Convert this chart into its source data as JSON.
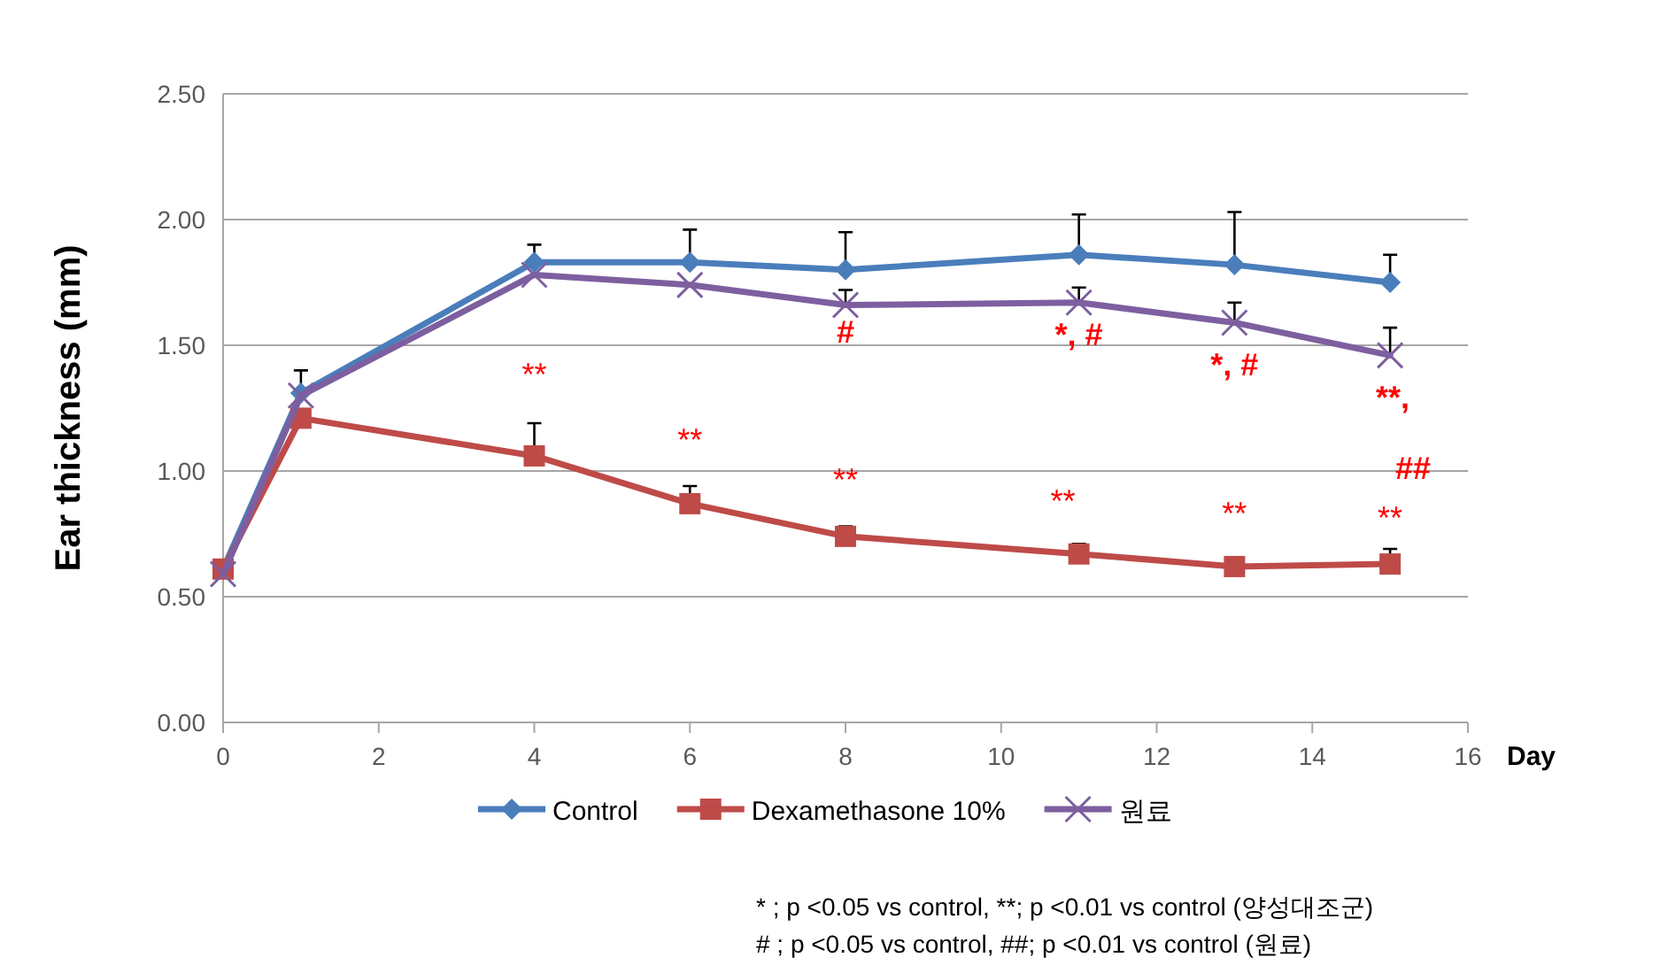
{
  "chart_data": {
    "type": "line",
    "xlabel": "Day",
    "ylabel": "Ear thickness (mm)",
    "x": [
      0,
      1,
      4,
      6,
      8,
      11,
      13,
      15
    ],
    "series": [
      {
        "name": "Control",
        "color": "#4a7ebb",
        "marker": "diamond",
        "values": [
          0.61,
          1.31,
          1.83,
          1.83,
          1.8,
          1.86,
          1.82,
          1.75
        ],
        "errors": [
          null,
          [
            1.31,
            1.4
          ],
          [
            1.83,
            1.9
          ],
          [
            1.83,
            1.96
          ],
          [
            1.8,
            1.95
          ],
          [
            1.86,
            2.02
          ],
          [
            1.82,
            2.03
          ],
          [
            1.75,
            1.86
          ]
        ]
      },
      {
        "name": "Dexamethasone 10%",
        "color": "#be4b48",
        "marker": "square",
        "values": [
          0.61,
          1.21,
          1.06,
          0.87,
          0.74,
          0.67,
          0.62,
          0.63
        ],
        "errors": [
          null,
          null,
          [
            1.06,
            1.19
          ],
          [
            0.87,
            0.94
          ],
          [
            0.74,
            0.78
          ],
          [
            0.67,
            0.71
          ],
          null,
          [
            0.63,
            0.69
          ]
        ]
      },
      {
        "name": "원료",
        "color": "#7d5fa0",
        "marker": "cross",
        "values": [
          0.59,
          1.3,
          1.78,
          1.74,
          1.66,
          1.67,
          1.59,
          1.46
        ],
        "errors": [
          null,
          null,
          null,
          null,
          [
            1.66,
            1.72
          ],
          [
            1.67,
            1.73
          ],
          [
            1.59,
            1.67
          ],
          [
            1.46,
            1.57
          ]
        ]
      }
    ],
    "xlim": [
      0,
      16
    ],
    "xticks": [
      0,
      2,
      4,
      6,
      8,
      10,
      12,
      14,
      16
    ],
    "ylim": [
      0,
      2.5
    ],
    "yticks": [
      {
        "value": 0,
        "label": "0.00"
      },
      {
        "value": 0.5,
        "label": "0.50"
      },
      {
        "value": 1,
        "label": "1.00"
      },
      {
        "value": 1.5,
        "label": "1.50"
      },
      {
        "value": 2,
        "label": "2.00"
      },
      {
        "value": 2.5,
        "label": "2.50"
      }
    ],
    "grid": "y",
    "legend": "bottom",
    "line_style": "solid",
    "annotations": [
      {
        "text": "**",
        "x": 4,
        "y": 1.06
      },
      {
        "text": "**",
        "x": 6,
        "y": 0.87
      },
      {
        "text": "**",
        "x": 8,
        "y": 0.74
      },
      {
        "text": "**",
        "x": 11,
        "y": 0.67
      },
      {
        "text": "**",
        "x": 13,
        "y": 0.62
      },
      {
        "text": "**",
        "x": 15,
        "y": 0.63
      },
      {
        "text": "#",
        "x": 8,
        "y": 1.66
      },
      {
        "text": "*, #",
        "x": 11,
        "y": 1.67
      },
      {
        "text": "*, #",
        "x": 13,
        "y": 1.59
      },
      {
        "text": "**, ##",
        "x": 15,
        "y": 1.46
      },
      "* ; p <0.05 vs control, **; p <0.01 vs control (양성대조군)",
      "# ; p <0.05 vs control, ##; p <0.01 vs control (원료)"
    ]
  }
}
